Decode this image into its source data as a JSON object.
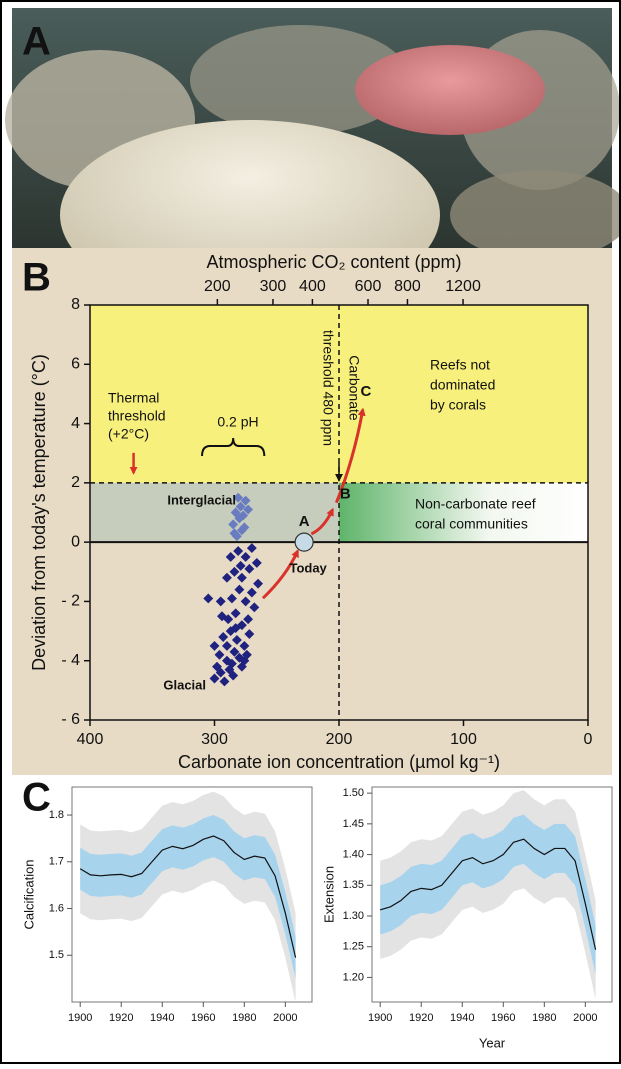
{
  "panel_labels": [
    "A",
    "B",
    "C"
  ],
  "chart_data": [
    {
      "type": "scatter",
      "x_label": "Carbonate ion concentration (µmol kg⁻¹)",
      "y_label": "Deviation from today's temperature (°C)",
      "x2_label": "Atmospheric CO₂ content (ppm)",
      "xlim": [
        400,
        0
      ],
      "xticks": [
        400,
        300,
        200,
        100,
        0
      ],
      "ylim": [
        -6,
        8
      ],
      "yticks": [
        {
          "value": -6,
          "label": "- 6"
        },
        {
          "value": -4,
          "label": "- 4"
        },
        {
          "value": -2,
          "label": "- 2"
        },
        0,
        2,
        4,
        6,
        8
      ],
      "x2_log": true,
      "x2lim": [
        79,
        2985
      ],
      "x2ticks": [
        200,
        300,
        400,
        600,
        800,
        1200
      ],
      "thresholds": {
        "temperature": 2,
        "carbonate": 200
      },
      "series": [
        {
          "name": "Interglacial",
          "color": "#6a7cc0",
          "x": [
            282,
            278,
            285,
            280,
            276,
            283,
            279,
            275,
            281,
            277,
            284,
            273
          ],
          "y": [
            0.2,
            0.4,
            0.6,
            0.8,
            0.5,
            1.0,
            1.2,
            1.4,
            1.5,
            0.9,
            0.3,
            1.1
          ]
        },
        {
          "name": "Glacial",
          "color": "#1f237f",
          "x": [
            300,
            298,
            295,
            292,
            290,
            288,
            285,
            296,
            290,
            284,
            280,
            278,
            293,
            287,
            282,
            276,
            272,
            289,
            283,
            278,
            273,
            268,
            295,
            286,
            280,
            275,
            270,
            265,
            305,
            290,
            284,
            278,
            272,
            266,
            287,
            281,
            275,
            270,
            283,
            276,
            300,
            294,
            279,
            286,
            274
          ],
          "y": [
            -4.6,
            -4.2,
            -4.4,
            -4.7,
            -4.0,
            -4.3,
            -4.5,
            -3.8,
            -3.5,
            -3.7,
            -3.9,
            -4.2,
            -3.2,
            -3.0,
            -3.3,
            -3.5,
            -3.1,
            -2.6,
            -2.4,
            -2.8,
            -2.6,
            -2.2,
            -2.0,
            -1.9,
            -1.6,
            -2.0,
            -1.7,
            -1.4,
            -1.9,
            -1.2,
            -1.0,
            -1.2,
            -0.9,
            -0.7,
            -0.5,
            -0.3,
            -0.5,
            -0.2,
            -2.9,
            -4.0,
            -3.5,
            -2.5,
            -0.8,
            -4.1,
            -3.8
          ]
        }
      ],
      "trajectory_start": {
        "x": 263,
        "y": -2
      },
      "states": [
        {
          "label": "A",
          "x": 228,
          "y": 0
        },
        {
          "label": "B",
          "x": 203,
          "y": 1.2
        },
        {
          "label": "C",
          "x": 180,
          "y": 4.6
        }
      ],
      "annotations": {
        "today": "Today",
        "thermal_threshold": [
          "Thermal",
          "threshold",
          "(+2°C)"
        ],
        "ph_span": "0.2 pH",
        "carbonate_threshold": [
          "Carbonate",
          "threshold 480 ppm"
        ],
        "reefs_not_dominated": [
          "Reefs not",
          "dominated",
          "by corals"
        ],
        "non_carbonate": [
          "Non-carbonate reef",
          "coral communities"
        ]
      }
    },
    {
      "type": "line",
      "y_label": "Calcification",
      "x": [
        1900,
        1905,
        1910,
        1915,
        1920,
        1925,
        1930,
        1935,
        1940,
        1945,
        1950,
        1955,
        1960,
        1965,
        1970,
        1975,
        1980,
        1985,
        1990,
        1995,
        2000,
        2005
      ],
      "xlim": [
        1896,
        2013
      ],
      "xticks": [
        1900,
        1920,
        1940,
        1960,
        1980,
        2000
      ],
      "ylim": [
        1.4,
        1.86
      ],
      "yticks": [
        1.5,
        1.6,
        1.7,
        1.8
      ],
      "line": {
        "color": "#111111",
        "values": [
          1.685,
          1.672,
          1.67,
          1.672,
          1.673,
          1.668,
          1.675,
          1.7,
          1.725,
          1.733,
          1.728,
          1.735,
          1.748,
          1.755,
          1.745,
          1.72,
          1.705,
          1.712,
          1.708,
          1.67,
          1.59,
          1.495
        ]
      },
      "bands": [
        {
          "color": "#e3e3e3",
          "low": [
            1.59,
            1.577,
            1.575,
            1.577,
            1.578,
            1.573,
            1.58,
            1.605,
            1.63,
            1.638,
            1.633,
            1.64,
            1.653,
            1.66,
            1.65,
            1.625,
            1.61,
            1.617,
            1.613,
            1.575,
            1.495,
            1.4
          ],
          "high": [
            1.78,
            1.767,
            1.765,
            1.767,
            1.768,
            1.763,
            1.77,
            1.795,
            1.82,
            1.828,
            1.823,
            1.83,
            1.843,
            1.85,
            1.84,
            1.815,
            1.8,
            1.807,
            1.803,
            1.765,
            1.685,
            1.59
          ]
        },
        {
          "color": "#a8d3ec",
          "low": [
            1.64,
            1.627,
            1.625,
            1.627,
            1.628,
            1.623,
            1.63,
            1.655,
            1.68,
            1.688,
            1.683,
            1.69,
            1.703,
            1.71,
            1.7,
            1.675,
            1.66,
            1.667,
            1.663,
            1.625,
            1.545,
            1.45
          ],
          "high": [
            1.73,
            1.717,
            1.715,
            1.717,
            1.718,
            1.713,
            1.72,
            1.745,
            1.77,
            1.778,
            1.773,
            1.78,
            1.793,
            1.8,
            1.79,
            1.765,
            1.75,
            1.757,
            1.753,
            1.715,
            1.635,
            1.54
          ]
        }
      ]
    },
    {
      "type": "line",
      "y_label": "Extension",
      "x_label": "Year",
      "x": [
        1900,
        1905,
        1910,
        1915,
        1920,
        1925,
        1930,
        1935,
        1940,
        1945,
        1950,
        1955,
        1960,
        1965,
        1970,
        1975,
        1980,
        1985,
        1990,
        1995,
        2000,
        2005
      ],
      "xlim": [
        1896,
        2013
      ],
      "xticks": [
        1900,
        1920,
        1940,
        1960,
        1980,
        2000
      ],
      "ylim": [
        1.16,
        1.51
      ],
      "yticks": [
        {
          "value": 1.2,
          "label": "1.20"
        },
        1.25,
        {
          "value": 1.3,
          "label": "1.30"
        },
        1.35,
        {
          "value": 1.4,
          "label": "1.40"
        },
        1.45,
        {
          "value": 1.5,
          "label": "1.50"
        }
      ],
      "line": {
        "color": "#111111",
        "values": [
          1.31,
          1.315,
          1.325,
          1.34,
          1.345,
          1.343,
          1.35,
          1.37,
          1.39,
          1.395,
          1.385,
          1.39,
          1.4,
          1.42,
          1.425,
          1.41,
          1.4,
          1.41,
          1.41,
          1.39,
          1.32,
          1.245
        ]
      },
      "bands": [
        {
          "color": "#e3e3e3",
          "low": [
            1.23,
            1.235,
            1.245,
            1.26,
            1.265,
            1.263,
            1.27,
            1.29,
            1.31,
            1.315,
            1.305,
            1.31,
            1.32,
            1.34,
            1.345,
            1.33,
            1.32,
            1.33,
            1.33,
            1.31,
            1.24,
            1.165
          ],
          "high": [
            1.39,
            1.395,
            1.405,
            1.42,
            1.425,
            1.423,
            1.43,
            1.45,
            1.47,
            1.475,
            1.465,
            1.47,
            1.48,
            1.5,
            1.505,
            1.49,
            1.48,
            1.49,
            1.49,
            1.47,
            1.4,
            1.325
          ]
        },
        {
          "color": "#a8d3ec",
          "low": [
            1.27,
            1.275,
            1.285,
            1.3,
            1.305,
            1.303,
            1.31,
            1.33,
            1.35,
            1.355,
            1.345,
            1.35,
            1.36,
            1.38,
            1.385,
            1.37,
            1.36,
            1.37,
            1.37,
            1.35,
            1.28,
            1.205
          ],
          "high": [
            1.35,
            1.355,
            1.365,
            1.38,
            1.385,
            1.383,
            1.39,
            1.41,
            1.43,
            1.435,
            1.425,
            1.43,
            1.44,
            1.46,
            1.465,
            1.45,
            1.44,
            1.45,
            1.45,
            1.43,
            1.36,
            1.285
          ]
        }
      ]
    }
  ]
}
